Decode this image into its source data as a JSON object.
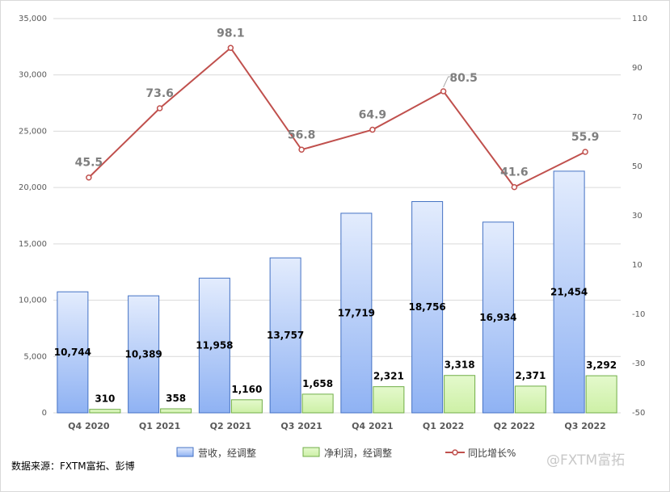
{
  "chart_data": {
    "type": "bar",
    "categories": [
      "Q4 2020",
      "Q1 2021",
      "Q2 2021",
      "Q3 2021",
      "Q4 2021",
      "Q1 2022",
      "Q2 2022",
      "Q3 2022"
    ],
    "series": [
      {
        "name": "营收，经调整",
        "type": "bar",
        "axis": "left",
        "values": [
          10744,
          10389,
          11958,
          13757,
          17719,
          18756,
          16934,
          21454
        ],
        "labels": [
          "10,744",
          "10,389",
          "11,958",
          "13,757",
          "17,719",
          "18,756",
          "16,934",
          "21,454"
        ],
        "color": "#a9c4f5"
      },
      {
        "name": "净利润，经调整",
        "type": "bar",
        "axis": "left",
        "values": [
          310,
          358,
          1160,
          1658,
          2321,
          3318,
          2371,
          3292
        ],
        "labels": [
          "310",
          "358",
          "1,160",
          "1,658",
          "2,321",
          "3,318",
          "2,371",
          "3,292"
        ],
        "color": "#d9f5b8"
      },
      {
        "name": "同比增长%",
        "type": "line",
        "axis": "right",
        "values": [
          45.5,
          73.6,
          98.1,
          56.8,
          64.9,
          80.5,
          41.6,
          55.9
        ],
        "labels": [
          "45.5",
          "73.6",
          "98.1",
          "56.8",
          "64.9",
          "80.5",
          "41.6",
          "55.9"
        ],
        "color": "#c0504d"
      }
    ],
    "y_left": {
      "min": 0,
      "max": 35000,
      "ticks": [
        "0",
        "5,000",
        "10,000",
        "15,000",
        "20,000",
        "25,000",
        "30,000",
        "35,000"
      ]
    },
    "y_right": {
      "min": -50,
      "max": 110,
      "ticks": [
        "-50",
        "-30",
        "-10",
        "10",
        "30",
        "50",
        "70",
        "90",
        "110"
      ]
    },
    "grid": true,
    "legend_position": "bottom"
  },
  "footer": {
    "source": "数据来源：FXTM富拓、彭博",
    "watermark": "@FXTM富拓"
  }
}
